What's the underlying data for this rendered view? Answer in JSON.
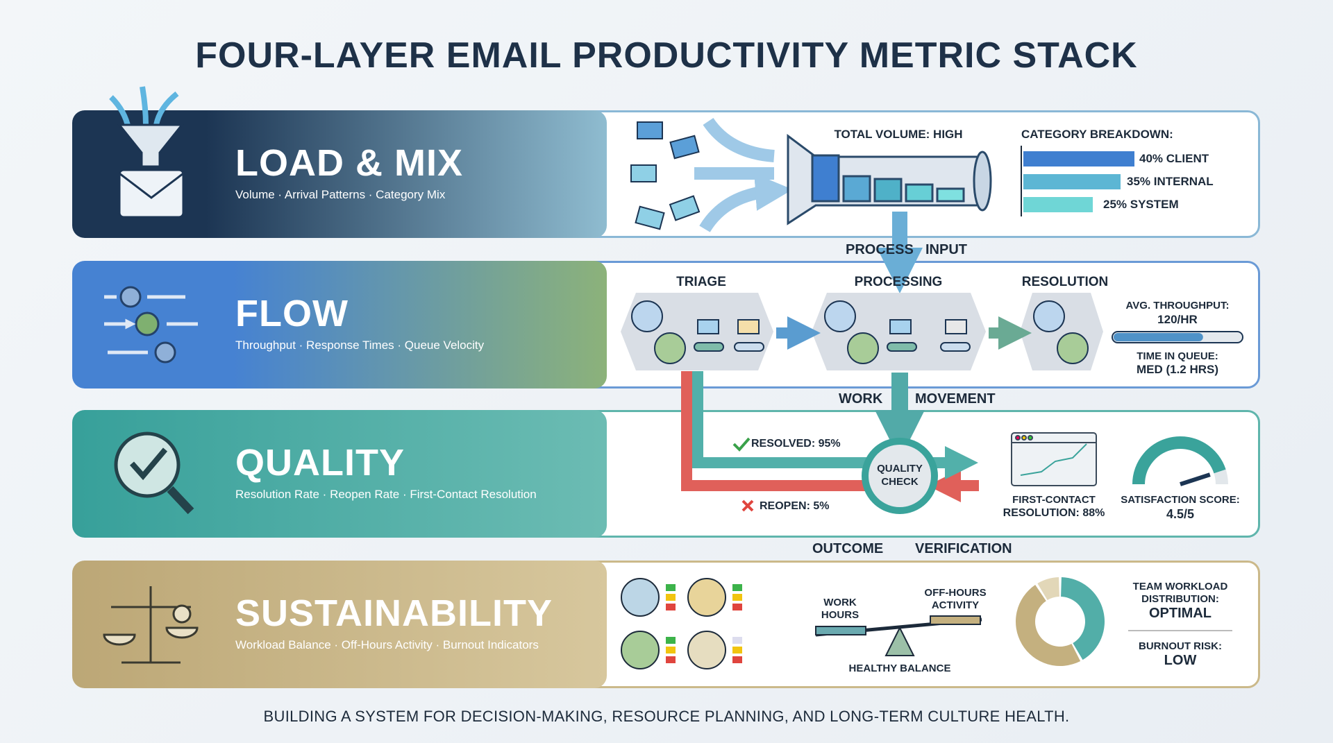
{
  "title": "FOUR-LAYER EMAIL PRODUCTIVITY METRIC STACK",
  "layers": [
    {
      "title": "LOAD & MIX",
      "subtitle": "Volume · Arrival Patterns · Category Mix",
      "icon": "funnel-envelope-icon",
      "color": "#1c3553"
    },
    {
      "title": "FLOW",
      "subtitle": "Throughput · Response Times · Queue Velocity",
      "icon": "gears-arrows-icon",
      "color": "#4a86d4"
    },
    {
      "title": "QUALITY",
      "subtitle": "Resolution Rate · Reopen Rate · First-Contact Resolution",
      "icon": "magnifier-check-icon",
      "color": "#3aa39b"
    },
    {
      "title": "SUSTAINABILITY",
      "subtitle": "Workload Balance · Off-Hours Activity · Burnout Indicators",
      "icon": "balance-scale-icon",
      "color": "#bfa978"
    }
  ],
  "load": {
    "total_volume": "TOTAL VOLUME: HIGH",
    "category_title": "CATEGORY BREAKDOWN:",
    "categories": [
      {
        "label": "40% CLIENT",
        "pct": 40,
        "color": "#3f7fd0"
      },
      {
        "label": "35% INTERNAL",
        "pct": 35,
        "color": "#5cb6d4"
      },
      {
        "label": "25% SYSTEM",
        "pct": 25,
        "color": "#6fd6d6"
      }
    ]
  },
  "connectors": {
    "c1": [
      "PROCESS",
      "INPUT"
    ],
    "c2": [
      "WORK",
      "MOVEMENT"
    ],
    "c3": [
      "OUTCOME",
      "VERIFICATION"
    ]
  },
  "flow": {
    "stages": [
      "TRIAGE",
      "PROCESSING",
      "RESOLUTION"
    ],
    "throughput_label": "AVG. THROUGHPUT:",
    "throughput_value": "120/HR",
    "throughput_fill": 0.7,
    "queue_label": "TIME IN QUEUE:",
    "queue_value": "MED (1.2 HRS)"
  },
  "quality": {
    "check": [
      "QUALITY",
      "CHECK"
    ],
    "resolved": "RESOLVED: 95%",
    "reopen": "REOPEN: 5%",
    "fcr": [
      "FIRST-CONTACT",
      "RESOLUTION: 88%"
    ],
    "satisfaction": [
      "SATISFACTION SCORE:",
      "4.5/5"
    ],
    "satisfaction_value": 4.5
  },
  "sustain": {
    "work_hours": [
      "WORK",
      "HOURS"
    ],
    "off_hours": [
      "OFF-HOURS",
      "ACTIVITY"
    ],
    "balance": "HEALTHY BALANCE",
    "workload": [
      "TEAM WORKLOAD",
      "DISTRIBUTION:",
      "OPTIMAL"
    ],
    "burnout": [
      "BURNOUT RISK:",
      "LOW"
    ]
  },
  "footer": "BUILDING A SYSTEM FOR DECISION-MAKING, RESOURCE PLANNING, AND LONG-TERM CULTURE HEALTH."
}
